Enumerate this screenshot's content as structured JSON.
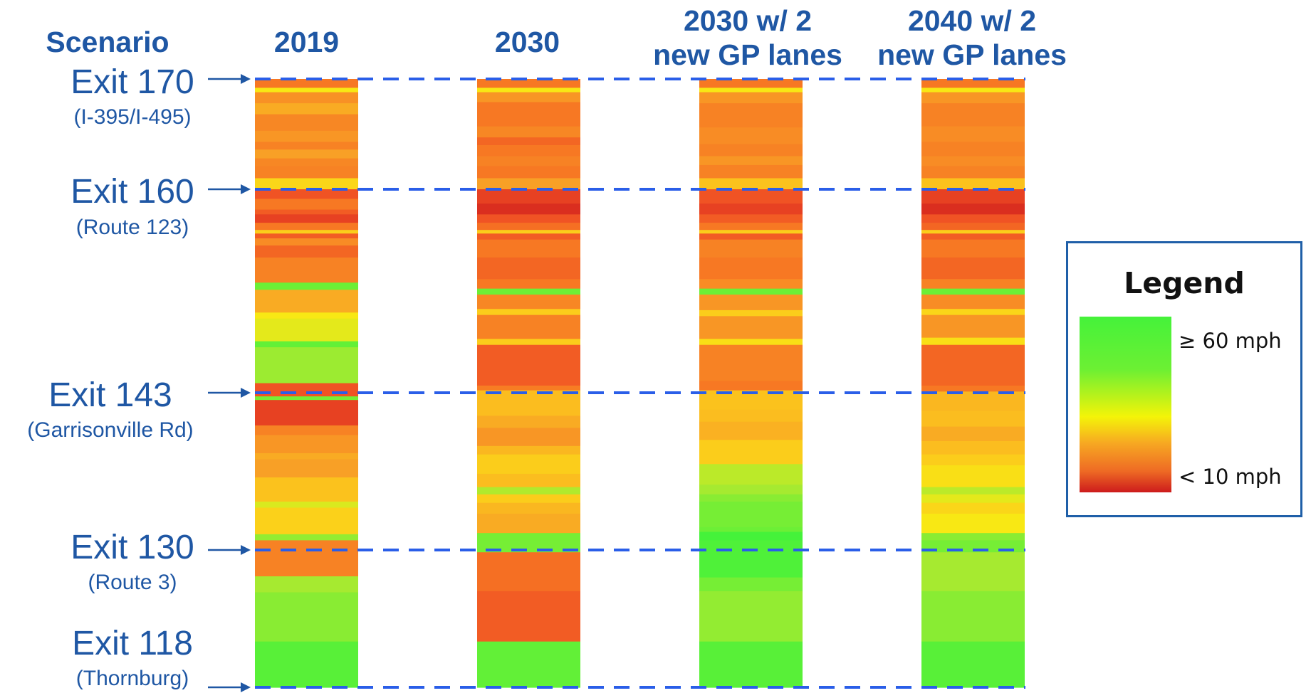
{
  "header": {
    "scenario": "Scenario",
    "columns": [
      {
        "line1": "2019",
        "line2": ""
      },
      {
        "line1": "2030",
        "line2": ""
      },
      {
        "line1": "2030 w/ 2",
        "line2": "new GP lanes"
      },
      {
        "line1": "2040 w/ 2",
        "line2": "new GP lanes"
      }
    ]
  },
  "exits": [
    {
      "name": "Exit 170",
      "sub": "(I-395/I-495)"
    },
    {
      "name": "Exit 160",
      "sub": "(Route 123)"
    },
    {
      "name": "Exit 143",
      "sub": "(Garrisonville Rd)"
    },
    {
      "name": "Exit 130",
      "sub": "(Route 3)"
    },
    {
      "name": "Exit 118",
      "sub": "(Thornburg)"
    }
  ],
  "legend": {
    "title": "Legend",
    "high_label": "≥ 60 mph",
    "low_label": "< 10 mph"
  },
  "colors": {
    "text_blue": "#1f57a4",
    "dash_blue": "#2a5ee8",
    "fast_green": "#45f23a",
    "slow_red": "#cd1b1c"
  },
  "chart_data": {
    "type": "heatmap",
    "description_scale": "speed in mph, 10 (red) to 60 (green)",
    "scale_min": 10,
    "scale_max": 60,
    "scenarios": [
      "2019",
      "2030",
      "2030 w/ 2 new GP lanes",
      "2040 w/ 2 new GP lanes"
    ],
    "exit_positions_miles": [
      170,
      160,
      143,
      130,
      118
    ],
    "series": [
      {
        "segments": [
          [
            170,
            169.2,
            20
          ],
          [
            169.2,
            168.8,
            42
          ],
          [
            168.8,
            167.8,
            25
          ],
          [
            167.8,
            166.8,
            30
          ],
          [
            166.8,
            165.3,
            23
          ],
          [
            165.3,
            164.3,
            26
          ],
          [
            164.3,
            163.6,
            22
          ],
          [
            163.6,
            162.8,
            28
          ],
          [
            162.8,
            162.1,
            23
          ],
          [
            162.1,
            161.0,
            22
          ],
          [
            161.0,
            160.0,
            38
          ],
          [
            160.0,
            159.2,
            16
          ],
          [
            159.2,
            158.3,
            20
          ],
          [
            158.3,
            157.9,
            17
          ],
          [
            157.9,
            157.2,
            14
          ],
          [
            157.2,
            156.6,
            20
          ],
          [
            156.6,
            156.3,
            36
          ],
          [
            156.3,
            155.9,
            17
          ],
          [
            155.9,
            155.3,
            24
          ],
          [
            155.3,
            154.3,
            18
          ],
          [
            154.3,
            152.2,
            22
          ],
          [
            152.2,
            151.6,
            56
          ],
          [
            151.6,
            149.7,
            30
          ],
          [
            149.7,
            149.2,
            42
          ],
          [
            149.2,
            147.3,
            44
          ],
          [
            147.3,
            146.8,
            57
          ],
          [
            146.8,
            143.8,
            51
          ],
          [
            143.8,
            142.7,
            16
          ],
          [
            142.7,
            142.4,
            55
          ],
          [
            142.4,
            140.3,
            14
          ],
          [
            140.3,
            139.5,
            22
          ],
          [
            139.5,
            138.0,
            26
          ],
          [
            138.0,
            137.5,
            30
          ],
          [
            137.5,
            136.0,
            28
          ],
          [
            136.0,
            134.0,
            34
          ],
          [
            134.0,
            133.5,
            45
          ],
          [
            133.5,
            131.3,
            37
          ],
          [
            131.3,
            130.8,
            52
          ],
          [
            130.8,
            127.7,
            22
          ],
          [
            127.7,
            126.3,
            50
          ],
          [
            126.3,
            122.0,
            53
          ],
          [
            122.0,
            118,
            58
          ]
        ]
      },
      {
        "segments": [
          [
            170,
            169.2,
            20
          ],
          [
            169.2,
            168.8,
            42
          ],
          [
            168.8,
            167.9,
            26
          ],
          [
            167.9,
            165.7,
            20
          ],
          [
            165.7,
            164.7,
            23
          ],
          [
            164.7,
            164.0,
            18
          ],
          [
            164.0,
            163.0,
            20
          ],
          [
            163.0,
            162.1,
            22
          ],
          [
            162.1,
            161.0,
            20
          ],
          [
            161.0,
            160.0,
            28
          ],
          [
            160.0,
            158.8,
            14
          ],
          [
            158.8,
            157.9,
            12
          ],
          [
            157.9,
            157.2,
            16
          ],
          [
            157.2,
            156.6,
            19
          ],
          [
            156.6,
            156.3,
            36
          ],
          [
            156.3,
            155.8,
            17
          ],
          [
            155.8,
            154.3,
            20
          ],
          [
            154.3,
            152.5,
            18
          ],
          [
            152.5,
            151.7,
            20
          ],
          [
            151.7,
            151.2,
            56
          ],
          [
            151.2,
            150.0,
            23
          ],
          [
            150.0,
            149.5,
            36
          ],
          [
            149.5,
            147.5,
            22
          ],
          [
            147.5,
            147.0,
            36
          ],
          [
            147.0,
            143.6,
            17
          ],
          [
            143.6,
            143.2,
            21
          ],
          [
            143.2,
            141.1,
            33
          ],
          [
            141.1,
            140.1,
            30
          ],
          [
            140.1,
            138.6,
            26
          ],
          [
            138.6,
            137.9,
            32
          ],
          [
            137.9,
            136.3,
            36
          ],
          [
            136.3,
            135.2,
            33
          ],
          [
            135.2,
            134.6,
            49
          ],
          [
            134.6,
            133.9,
            36
          ],
          [
            133.9,
            133.0,
            32
          ],
          [
            133.0,
            131.4,
            30
          ],
          [
            131.4,
            130.8,
            55
          ],
          [
            130.8,
            129.8,
            55
          ],
          [
            129.8,
            126.4,
            19
          ],
          [
            126.4,
            122.0,
            17
          ],
          [
            122.0,
            118,
            57
          ]
        ]
      },
      {
        "segments": [
          [
            170,
            169.2,
            20
          ],
          [
            169.2,
            168.8,
            42
          ],
          [
            168.8,
            167.8,
            26
          ],
          [
            167.8,
            165.6,
            22
          ],
          [
            165.6,
            164.1,
            24
          ],
          [
            164.1,
            163.0,
            22
          ],
          [
            163.0,
            162.2,
            26
          ],
          [
            162.2,
            161.0,
            22
          ],
          [
            161.0,
            160.0,
            34
          ],
          [
            160.0,
            158.8,
            16
          ],
          [
            158.8,
            157.9,
            14
          ],
          [
            157.9,
            157.2,
            17
          ],
          [
            157.2,
            156.6,
            20
          ],
          [
            156.6,
            156.3,
            36
          ],
          [
            156.3,
            155.8,
            17
          ],
          [
            155.8,
            154.3,
            22
          ],
          [
            154.3,
            152.5,
            20
          ],
          [
            152.5,
            151.7,
            24
          ],
          [
            151.7,
            151.2,
            56
          ],
          [
            151.2,
            149.9,
            26
          ],
          [
            149.9,
            149.4,
            36
          ],
          [
            149.4,
            147.5,
            26
          ],
          [
            147.5,
            147.0,
            40
          ],
          [
            147.0,
            144.0,
            22
          ],
          [
            144.0,
            143.2,
            20
          ],
          [
            143.2,
            141.6,
            34
          ],
          [
            141.6,
            140.6,
            33
          ],
          [
            140.6,
            139.1,
            31
          ],
          [
            139.1,
            137.1,
            36
          ],
          [
            137.1,
            135.4,
            48
          ],
          [
            135.4,
            134.6,
            50
          ],
          [
            134.6,
            134.0,
            53
          ],
          [
            134.0,
            131.9,
            55
          ],
          [
            131.9,
            131.5,
            56
          ],
          [
            131.5,
            130.8,
            60
          ],
          [
            130.8,
            127.6,
            59
          ],
          [
            127.6,
            126.4,
            55
          ],
          [
            126.4,
            122.0,
            52
          ],
          [
            122.0,
            118,
            58
          ]
        ]
      },
      {
        "segments": [
          [
            170,
            169.2,
            20
          ],
          [
            169.2,
            168.8,
            42
          ],
          [
            168.8,
            167.8,
            26
          ],
          [
            167.8,
            165.7,
            22
          ],
          [
            165.7,
            164.3,
            24
          ],
          [
            164.3,
            163.0,
            22
          ],
          [
            163.0,
            162.1,
            24
          ],
          [
            162.1,
            161.0,
            22
          ],
          [
            161.0,
            160.0,
            34
          ],
          [
            160.0,
            158.8,
            14
          ],
          [
            158.8,
            157.9,
            12
          ],
          [
            157.9,
            157.2,
            16
          ],
          [
            157.2,
            156.6,
            18
          ],
          [
            156.6,
            156.3,
            36
          ],
          [
            156.3,
            155.8,
            17
          ],
          [
            155.8,
            154.3,
            20
          ],
          [
            154.3,
            152.5,
            18
          ],
          [
            152.5,
            151.7,
            22
          ],
          [
            151.7,
            151.2,
            56
          ],
          [
            151.2,
            150.0,
            24
          ],
          [
            150.0,
            149.5,
            38
          ],
          [
            149.5,
            147.6,
            26
          ],
          [
            147.6,
            147.0,
            40
          ],
          [
            147.0,
            143.6,
            18
          ],
          [
            143.6,
            143.1,
            20
          ],
          [
            143.1,
            141.5,
            32
          ],
          [
            141.5,
            140.2,
            33
          ],
          [
            140.2,
            139.0,
            30
          ],
          [
            139.0,
            137.9,
            33
          ],
          [
            137.9,
            137.0,
            36
          ],
          [
            137.0,
            135.2,
            40
          ],
          [
            135.2,
            134.6,
            48
          ],
          [
            134.6,
            133.9,
            44
          ],
          [
            133.9,
            133.0,
            38
          ],
          [
            133.0,
            131.4,
            42
          ],
          [
            131.4,
            130.8,
            53
          ],
          [
            130.8,
            129.8,
            55
          ],
          [
            129.8,
            126.4,
            50
          ],
          [
            126.4,
            122.0,
            53
          ],
          [
            122.0,
            118,
            58
          ]
        ]
      }
    ]
  }
}
